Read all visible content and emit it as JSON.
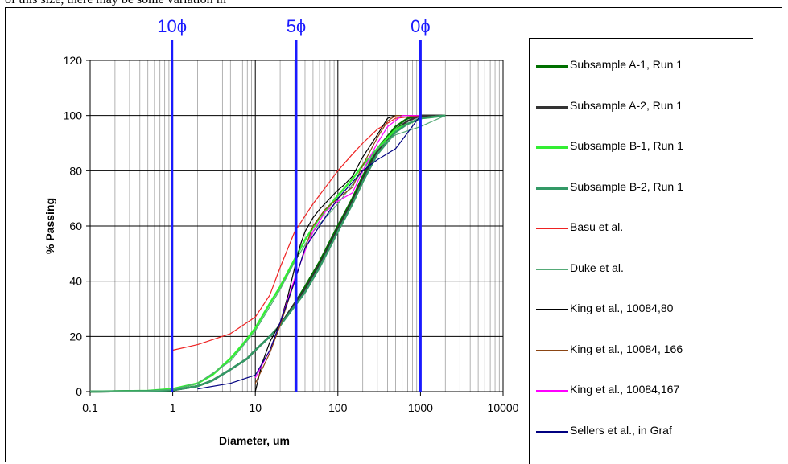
{
  "header_text": "of this size, there may be some variation in",
  "chart_data": {
    "type": "line",
    "xscale": "log",
    "xlabel": "Diameter, um",
    "ylabel": "% Passing",
    "xlim": [
      0.1,
      10000
    ],
    "ylim": [
      0,
      120
    ],
    "xticks": [
      "0.1",
      "1",
      "10",
      "100",
      "1000",
      "10000"
    ],
    "yticks": [
      "0",
      "20",
      "40",
      "60",
      "80",
      "100",
      "120"
    ],
    "grid": true,
    "legend_position": "right",
    "phi_markers": [
      {
        "label": "10ϕ",
        "x": 0.98
      },
      {
        "label": "5ϕ",
        "x": 31.25
      },
      {
        "label": "0ϕ",
        "x": 1000
      }
    ],
    "phi_color": "#1a1aff",
    "series": [
      {
        "name": "Subsample A-1, Run 1",
        "color": "#007000",
        "width": 2.5,
        "x": [
          0.1,
          0.5,
          1,
          2,
          3,
          5,
          8,
          10,
          15,
          20,
          30,
          40,
          60,
          100,
          150,
          200,
          300,
          500,
          700,
          1000,
          2000
        ],
        "y": [
          0,
          0.2,
          0.5,
          2,
          4,
          8,
          12,
          15,
          20,
          24,
          32,
          38,
          47,
          60,
          70,
          78,
          88,
          96,
          99,
          100,
          100
        ]
      },
      {
        "name": "Subsample A-2, Run 1",
        "color": "#333333",
        "width": 2.5,
        "x": [
          0.1,
          0.5,
          1,
          2,
          3,
          5,
          8,
          10,
          15,
          20,
          30,
          40,
          60,
          100,
          150,
          200,
          300,
          500,
          700,
          1000,
          2000
        ],
        "y": [
          0,
          0.2,
          0.5,
          2,
          4,
          8,
          12,
          15,
          20,
          24,
          32,
          37,
          46,
          59,
          69,
          77,
          87,
          95,
          98,
          100,
          100
        ]
      },
      {
        "name": "Subsample B-1, Run 1",
        "color": "#33ee33",
        "width": 2.5,
        "x": [
          0.1,
          0.5,
          1,
          2,
          3,
          5,
          7,
          10,
          15,
          20,
          30,
          40,
          60,
          100,
          150,
          200,
          300,
          500,
          1000,
          2000
        ],
        "y": [
          0,
          0.3,
          1,
          3,
          6,
          12,
          17,
          23,
          32,
          38,
          48,
          55,
          63,
          71,
          77,
          82,
          88,
          95,
          99,
          100
        ]
      },
      {
        "name": "Subsample B-2, Run 1",
        "color": "#339966",
        "width": 2.5,
        "x": [
          0.1,
          0.5,
          1,
          2,
          3,
          5,
          8,
          10,
          15,
          20,
          30,
          40,
          60,
          100,
          150,
          200,
          300,
          500,
          700,
          1000,
          2000
        ],
        "y": [
          0,
          0.2,
          0.5,
          2,
          4,
          8,
          12,
          15,
          20,
          24,
          31,
          36,
          45,
          58,
          68,
          76,
          86,
          94,
          97,
          99,
          100
        ]
      },
      {
        "name": "Basu et al.",
        "color": "#ee2222",
        "width": 1.2,
        "x": [
          1,
          2,
          5,
          10,
          15,
          20,
          30,
          50,
          100,
          150,
          200,
          300,
          500,
          1000
        ],
        "y": [
          15,
          17,
          21,
          27,
          35,
          45,
          58,
          68,
          80,
          86,
          90,
          95,
          99,
          100
        ]
      },
      {
        "name": "Duke et al.",
        "color": "#55aa77",
        "width": 1.2,
        "x": [
          0.1,
          0.5,
          1,
          2,
          5,
          10,
          20,
          30,
          50,
          100,
          200,
          300,
          500,
          1000,
          2000
        ],
        "y": [
          0,
          0.2,
          0.8,
          3,
          11,
          22,
          37,
          47,
          58,
          68,
          80,
          88,
          93,
          96,
          100
        ]
      },
      {
        "name": "King et al., 10084,80",
        "color": "#000000",
        "width": 1.2,
        "x": [
          10,
          12,
          15,
          20,
          25,
          30,
          35,
          40,
          50,
          60,
          80,
          100,
          120,
          150,
          200,
          300,
          400,
          500,
          700,
          1000
        ],
        "y": [
          0,
          10,
          18,
          25,
          35,
          45,
          53,
          58,
          63,
          66,
          70,
          73,
          75,
          78,
          85,
          93,
          99,
          100,
          100,
          100
        ]
      },
      {
        "name": "King et al., 10084, 166",
        "color": "#8b4513",
        "width": 1.2,
        "x": [
          10,
          15,
          20,
          30,
          40,
          50,
          70,
          100,
          150,
          200,
          300,
          400,
          500,
          1000
        ],
        "y": [
          3,
          14,
          24,
          40,
          52,
          60,
          66,
          70,
          74,
          82,
          92,
          98,
          100,
          100
        ]
      },
      {
        "name": "King et al., 10084,167",
        "color": "#ff00ff",
        "width": 1.2,
        "x": [
          10,
          15,
          20,
          30,
          40,
          50,
          70,
          100,
          150,
          200,
          300,
          400,
          600,
          1000
        ],
        "y": [
          5,
          15,
          25,
          41,
          51,
          58,
          65,
          69,
          72,
          80,
          90,
          96,
          100,
          100
        ]
      },
      {
        "name": "Sellers et al., in Graf",
        "color": "#000080",
        "width": 1.2,
        "x": [
          2,
          5,
          10,
          15,
          20,
          30,
          40,
          60,
          100,
          200,
          300,
          500,
          1000
        ],
        "y": [
          1,
          3,
          6,
          15,
          25,
          40,
          52,
          60,
          70,
          80,
          84,
          88,
          100
        ]
      }
    ]
  }
}
